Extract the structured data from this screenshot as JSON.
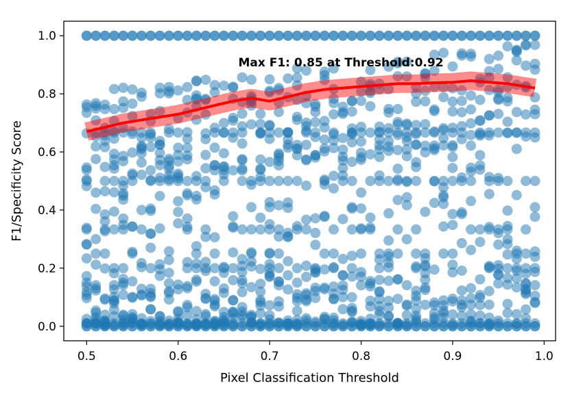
{
  "chart_data": {
    "type": "scatter",
    "xlabel": "Pixel Classification Threshold",
    "ylabel": "F1/Specificity Score",
    "xlim": [
      0.475,
      1.0125
    ],
    "ylim": [
      -0.05,
      1.05
    ],
    "xticks": [
      0.5,
      0.6,
      0.7,
      0.8,
      0.9,
      1.0
    ],
    "yticks": [
      0.0,
      0.2,
      0.4,
      0.6,
      0.8,
      1.0
    ],
    "xtick_labels": [
      "0.5",
      "0.6",
      "0.7",
      "0.8",
      "0.9",
      "1.0"
    ],
    "ytick_labels": [
      "0.0",
      "0.2",
      "0.4",
      "0.6",
      "0.8",
      "1.0"
    ],
    "grid": false,
    "annotation": "Max F1: 0.85 at Threshold:0.92",
    "scatter_color": "#1f77b4",
    "line_color": "#ff0000",
    "x_start": 0.5,
    "x_step": 0.01,
    "scatter_levels": [
      1.0,
      0.6667,
      0.5,
      0.3333,
      0.25,
      0.2,
      0.0
    ],
    "mean_curve": {
      "x": [
        0.5,
        0.52,
        0.54,
        0.56,
        0.58,
        0.6,
        0.62,
        0.64,
        0.66,
        0.68,
        0.7,
        0.72,
        0.74,
        0.76,
        0.78,
        0.8,
        0.82,
        0.84,
        0.86,
        0.88,
        0.9,
        0.92,
        0.94,
        0.96,
        0.98,
        0.99
      ],
      "y": [
        0.67,
        0.685,
        0.7,
        0.71,
        0.72,
        0.73,
        0.745,
        0.76,
        0.775,
        0.785,
        0.775,
        0.79,
        0.805,
        0.815,
        0.82,
        0.825,
        0.83,
        0.835,
        0.835,
        0.838,
        0.84,
        0.845,
        0.84,
        0.835,
        0.825,
        0.82
      ]
    }
  }
}
